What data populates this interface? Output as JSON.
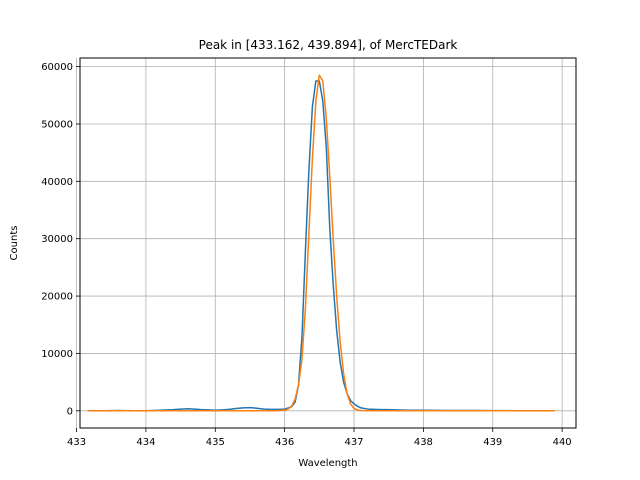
{
  "chart_data": {
    "type": "line",
    "title": "Peak in [433.162, 439.894], of MercTEDark",
    "xlabel": "Wavelength",
    "ylabel": "Counts",
    "xlim": [
      433.05,
      440.2
    ],
    "ylim": [
      -3000,
      61500
    ],
    "xticks": [
      433,
      434,
      435,
      436,
      437,
      438,
      439,
      440
    ],
    "yticks": [
      0,
      10000,
      20000,
      30000,
      40000,
      50000,
      60000
    ],
    "grid": true,
    "series": [
      {
        "color": "#1f77b4",
        "x": [
          433.162,
          433.4,
          433.6,
          433.8,
          434.0,
          434.2,
          434.4,
          434.5,
          434.6,
          434.7,
          434.8,
          434.9,
          435.0,
          435.1,
          435.2,
          435.3,
          435.4,
          435.5,
          435.6,
          435.7,
          435.8,
          435.9,
          436.0,
          436.1,
          436.15,
          436.2,
          436.25,
          436.3,
          436.35,
          436.4,
          436.45,
          436.5,
          436.55,
          436.6,
          436.65,
          436.7,
          436.75,
          436.8,
          436.85,
          436.9,
          436.95,
          437.0,
          437.05,
          437.1,
          437.2,
          437.3,
          437.4,
          437.5,
          437.6,
          437.8,
          438.0,
          438.2,
          438.4,
          438.6,
          438.8,
          439.0,
          439.2,
          439.4,
          439.6,
          439.894
        ],
        "values": [
          0,
          0,
          50,
          0,
          0,
          100,
          200,
          300,
          350,
          300,
          200,
          150,
          100,
          150,
          250,
          400,
          500,
          550,
          450,
          300,
          250,
          250,
          300,
          700,
          1500,
          4500,
          13000,
          28000,
          42000,
          53000,
          57500,
          57500,
          54000,
          46000,
          32000,
          22000,
          14000,
          8500,
          5000,
          3000,
          1800,
          1200,
          800,
          500,
          300,
          250,
          200,
          200,
          150,
          100,
          100,
          80,
          60,
          50,
          40,
          30,
          20,
          10,
          5,
          0
        ]
      },
      {
        "color": "#ff7f0e",
        "x": [
          433.162,
          433.4,
          433.6,
          433.8,
          434.0,
          434.2,
          434.4,
          434.6,
          434.8,
          435.0,
          435.2,
          435.4,
          435.6,
          435.8,
          435.9,
          436.0,
          436.05,
          436.1,
          436.15,
          436.2,
          436.25,
          436.3,
          436.35,
          436.4,
          436.45,
          436.5,
          436.55,
          436.6,
          436.65,
          436.7,
          436.75,
          436.8,
          436.85,
          436.9,
          436.95,
          437.0,
          437.05,
          437.1,
          437.2,
          437.4,
          437.6,
          437.8,
          438.0,
          438.2,
          438.4,
          438.6,
          438.8,
          439.0,
          439.2,
          439.4,
          439.6,
          439.894
        ],
        "values": [
          0,
          0,
          0,
          0,
          0,
          0,
          0,
          0,
          0,
          0,
          0,
          0,
          0,
          0,
          20,
          100,
          300,
          800,
          2000,
          4500,
          9000,
          18000,
          31000,
          44000,
          54000,
          58500,
          57500,
          51000,
          41000,
          30000,
          20000,
          12000,
          6500,
          3000,
          1200,
          400,
          150,
          50,
          10,
          0,
          0,
          0,
          0,
          0,
          0,
          0,
          0,
          0,
          0,
          0,
          0,
          0
        ]
      }
    ]
  }
}
